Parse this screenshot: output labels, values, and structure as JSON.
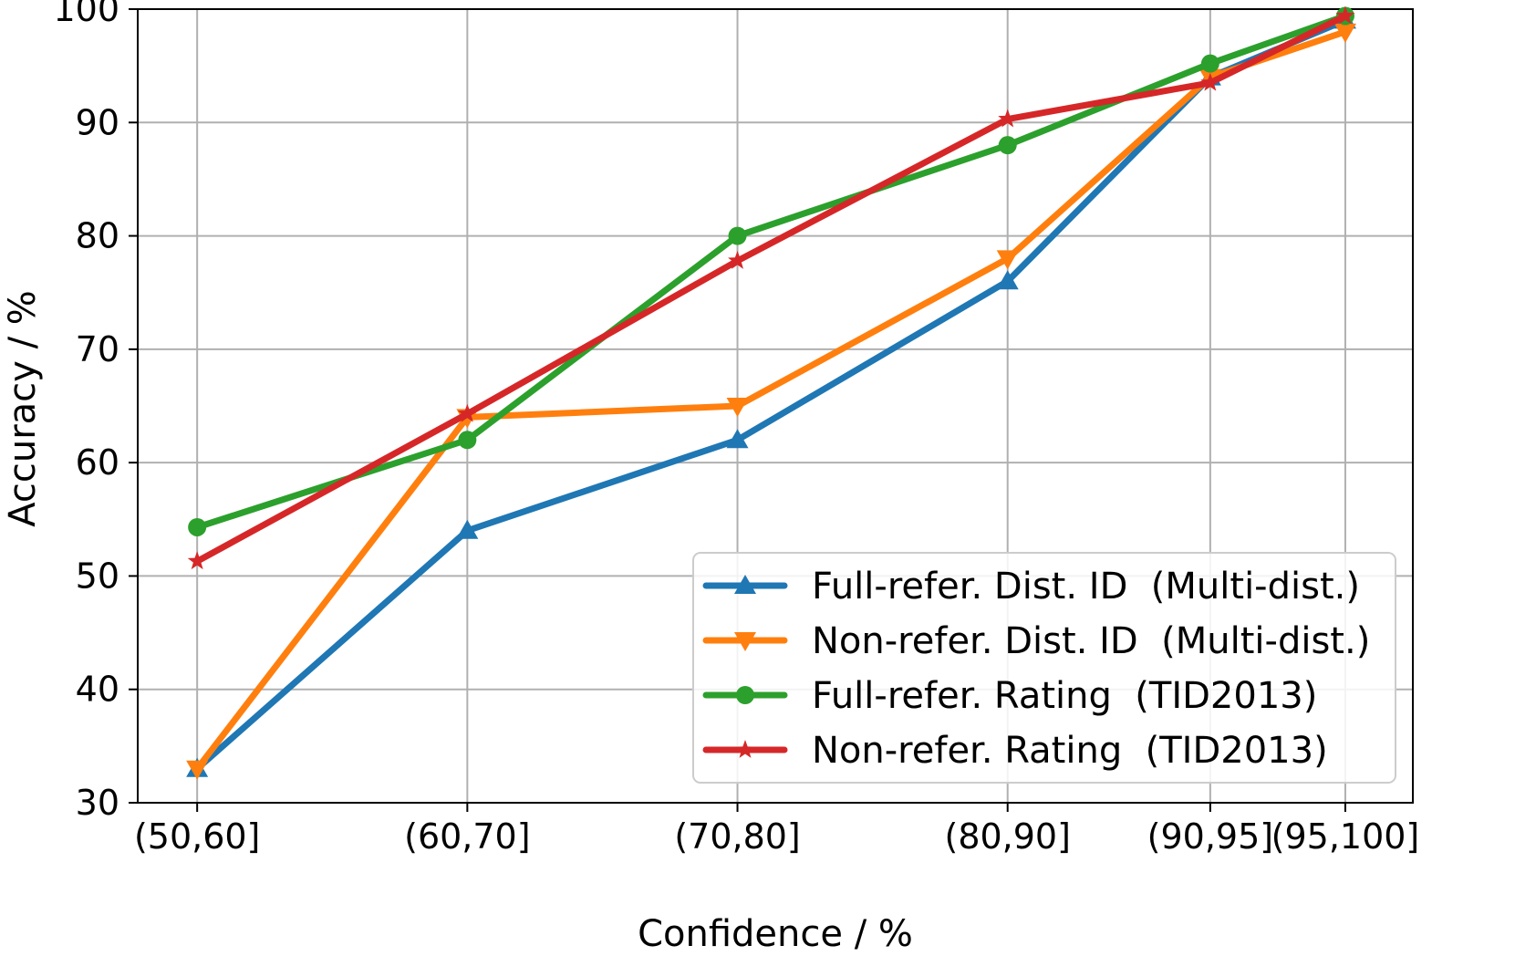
{
  "chart_data": {
    "type": "line",
    "xlabel": "Confidence / %",
    "ylabel": "Accuracy / %",
    "x_positions": [
      55,
      65,
      75,
      85,
      92.5,
      97.5
    ],
    "x_tick_labels": [
      "(50,60]",
      "(60,70]",
      "(70,80]",
      "(80,90]",
      "(90,95]",
      "(95,100]"
    ],
    "xlim": [
      52.8,
      100
    ],
    "ylim": [
      30,
      100
    ],
    "y_ticks": [
      30,
      40,
      50,
      60,
      70,
      80,
      90,
      100
    ],
    "grid": true,
    "legend_position": "lower-right",
    "series": [
      {
        "name": "Full-refer. Dist. ID  (Multi-dist.)",
        "color": "#1f77b4",
        "marker": "triangle-up",
        "values": [
          33,
          54,
          62,
          76,
          94,
          99
        ]
      },
      {
        "name": "Non-refer. Dist. ID  (Multi-dist.)",
        "color": "#ff7f0e",
        "marker": "triangle-down",
        "values": [
          33,
          64,
          65,
          78,
          94,
          98
        ]
      },
      {
        "name": "Full-refer. Rating  (TID2013)",
        "color": "#2ca02c",
        "marker": "circle",
        "values": [
          54.3,
          62,
          80,
          88,
          95.2,
          99.4
        ]
      },
      {
        "name": "Non-refer. Rating  (TID2013)",
        "color": "#d62728",
        "marker": "star",
        "values": [
          51.3,
          64.3,
          77.8,
          90.3,
          93.5,
          99.4
        ]
      }
    ]
  }
}
